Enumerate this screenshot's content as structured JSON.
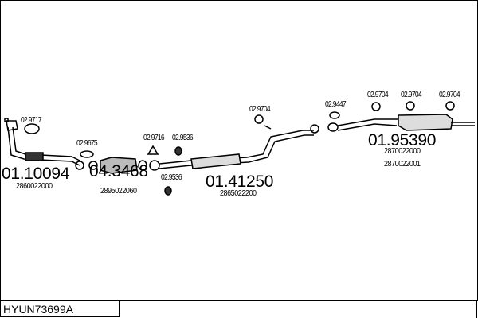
{
  "diagram_code": "HYUN73699A",
  "parts": [
    {
      "number": "01.10094",
      "oe": [
        "2860022000"
      ]
    },
    {
      "number": "04.3468",
      "oe": [
        "2895022060"
      ]
    },
    {
      "number": "01.41250",
      "oe": [
        "2865022200"
      ]
    },
    {
      "number": "01.95390",
      "oe": [
        "2870022000",
        "2870022001"
      ]
    }
  ],
  "accessories": [
    "02.9717",
    "02.9675",
    "02.9716",
    "02.9536",
    "02.9536",
    "02.9704",
    "02.9447",
    "02.9704",
    "02.9704",
    "02.9704"
  ]
}
